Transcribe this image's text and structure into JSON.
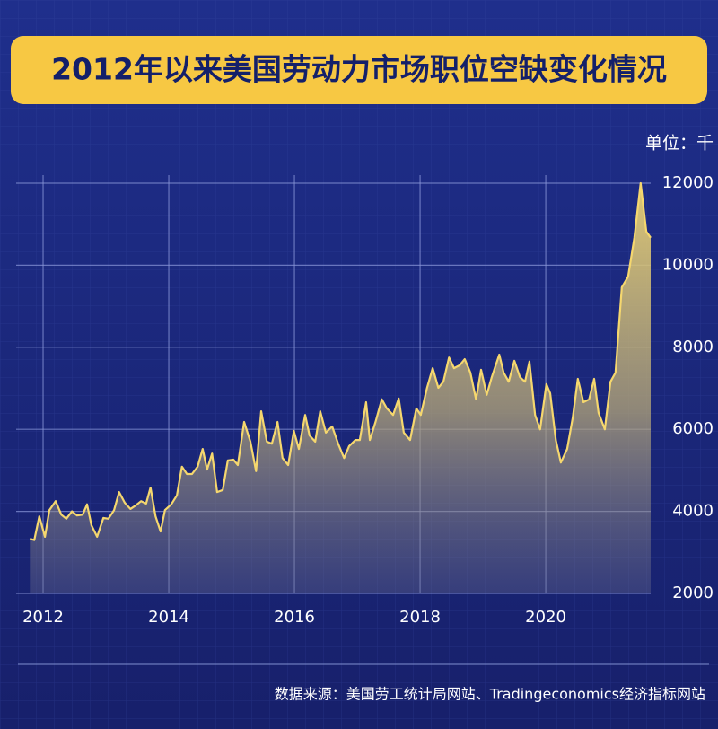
{
  "chart_data": {
    "type": "area",
    "title": "2012年以来美国劳动力市场职位空缺变化情况",
    "unit_label": "单位：千",
    "source": "数据来源：美国劳工统计局网站、Tradingeconomics经济指标网站",
    "color": "#f5d76e",
    "grid": true,
    "xlim": [
      2011.714,
      2021.67
    ],
    "xticks": [
      2012,
      2014,
      2016,
      2018,
      2020
    ],
    "ylim": [
      2000,
      12000
    ],
    "yticks": [
      2000,
      4000,
      6000,
      8000,
      10000,
      12000
    ],
    "x": [
      2011.79,
      2011.86,
      2011.94,
      2012.03,
      2012.1,
      2012.2,
      2012.29,
      2012.37,
      2012.46,
      2012.54,
      2012.63,
      2012.7,
      2012.77,
      2012.86,
      2012.96,
      2013.04,
      2013.13,
      2013.21,
      2013.3,
      2013.39,
      2013.47,
      2013.56,
      2013.64,
      2013.71,
      2013.79,
      2013.87,
      2013.94,
      2014.04,
      2014.13,
      2014.21,
      2014.29,
      2014.37,
      2014.46,
      2014.54,
      2014.61,
      2014.69,
      2014.77,
      2014.86,
      2014.94,
      2015.03,
      2015.1,
      2015.2,
      2015.3,
      2015.39,
      2015.47,
      2015.56,
      2015.64,
      2015.73,
      2015.81,
      2015.9,
      2015.99,
      2016.07,
      2016.17,
      2016.24,
      2016.33,
      2016.41,
      2016.5,
      2016.6,
      2016.7,
      2016.79,
      2016.87,
      2016.97,
      2017.04,
      2017.14,
      2017.2,
      2017.29,
      2017.39,
      2017.47,
      2017.57,
      2017.66,
      2017.74,
      2017.84,
      2017.94,
      2018.01,
      2018.11,
      2018.2,
      2018.29,
      2018.37,
      2018.46,
      2018.54,
      2018.63,
      2018.71,
      2018.8,
      2018.89,
      2018.97,
      2019.06,
      2019.14,
      2019.26,
      2019.33,
      2019.41,
      2019.5,
      2019.59,
      2019.67,
      2019.74,
      2019.83,
      2019.91,
      2020.01,
      2020.07,
      2020.16,
      2020.24,
      2020.34,
      2020.43,
      2020.51,
      2020.6,
      2020.69,
      2020.77,
      2020.84,
      2020.94,
      2021.03,
      2021.11,
      2021.21,
      2021.31,
      2021.41,
      2021.51,
      2021.6,
      2021.67
    ],
    "values": [
      3330,
      3300,
      3880,
      3380,
      4030,
      4250,
      3920,
      3820,
      4000,
      3900,
      3920,
      4170,
      3660,
      3380,
      3840,
      3820,
      4030,
      4470,
      4210,
      4060,
      4140,
      4250,
      4190,
      4580,
      3880,
      3510,
      4030,
      4170,
      4390,
      5090,
      4910,
      4910,
      5090,
      5520,
      5020,
      5410,
      4470,
      4520,
      5240,
      5260,
      5130,
      6180,
      5700,
      4980,
      6440,
      5700,
      5650,
      6180,
      5300,
      5130,
      5960,
      5520,
      6350,
      5850,
      5700,
      6440,
      5920,
      6070,
      5630,
      5300,
      5590,
      5740,
      5740,
      6660,
      5740,
      6180,
      6730,
      6510,
      6350,
      6750,
      5920,
      5740,
      6510,
      6350,
      7010,
      7490,
      7010,
      7160,
      7750,
      7490,
      7560,
      7710,
      7380,
      6730,
      7450,
      6840,
      7270,
      7820,
      7380,
      7160,
      7670,
      7270,
      7160,
      7650,
      6350,
      6000,
      7100,
      6880,
      5740,
      5190,
      5520,
      6290,
      7230,
      6660,
      6730,
      7230,
      6400,
      6000,
      7160,
      7380,
      9460,
      9720,
      10670,
      12000,
      10820,
      10670
    ]
  }
}
